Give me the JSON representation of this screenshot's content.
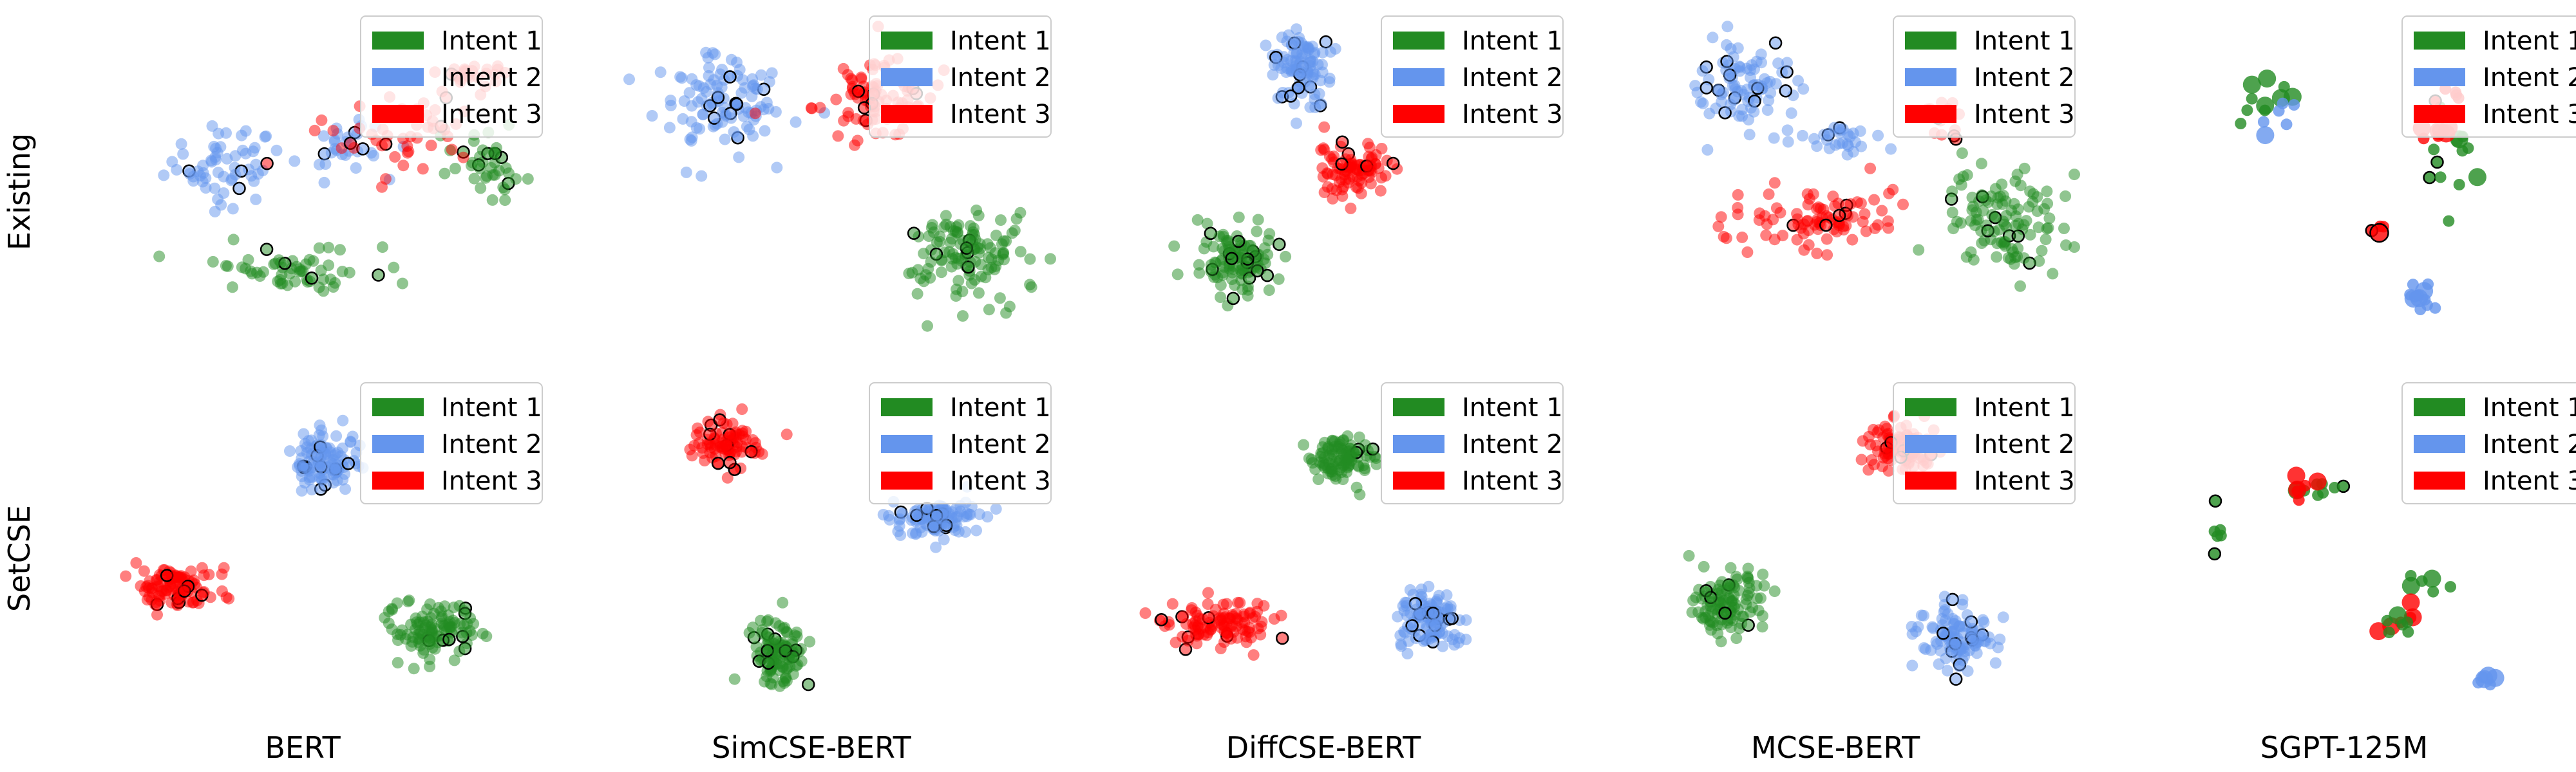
{
  "chart_data": {
    "type": "scatter",
    "description_free": true,
    "rows": [
      "Existing",
      "SetCSE"
    ],
    "columns": [
      "BERT",
      "SimCSE-BERT",
      "DiffCSE-BERT",
      "MCSE-BERT",
      "SGPT-125M"
    ],
    "legend": [
      {
        "name": "Intent 1",
        "color": "#228b22"
      },
      {
        "name": "Intent 2",
        "color": "#6495ed"
      },
      {
        "name": "Intent 3",
        "color": "#ff0000"
      }
    ],
    "legend_position": "top-right",
    "axes_visible": false,
    "grid": false,
    "panels": [
      {
        "row": "Existing",
        "column": "BERT",
        "clusters": [
          {
            "series": "Intent 2",
            "center": [
              -1.6,
              0.6
            ],
            "spread": [
              0.9,
              0.8
            ],
            "n": 60
          },
          {
            "series": "Intent 2",
            "center": [
              0.5,
              1.0
            ],
            "spread": [
              0.7,
              0.6
            ],
            "n": 30
          },
          {
            "series": "Intent 1",
            "center": [
              -0.4,
              -1.8
            ],
            "spread": [
              1.2,
              0.5
            ],
            "n": 60
          },
          {
            "series": "Intent 1",
            "center": [
              3.0,
              0.6
            ],
            "spread": [
              0.6,
              0.6
            ],
            "n": 40
          },
          {
            "series": "Intent 3",
            "center": [
              1.4,
              1.4
            ],
            "spread": [
              1.2,
              0.9
            ],
            "n": 50
          },
          {
            "series": "Intent 3",
            "center": [
              2.5,
              2.6
            ],
            "spread": [
              0.6,
              0.5
            ],
            "n": 25
          }
        ]
      },
      {
        "row": "Existing",
        "column": "SimCSE-BERT",
        "clusters": [
          {
            "series": "Intent 2",
            "center": [
              -1.8,
              2.0
            ],
            "spread": [
              1.0,
              1.0
            ],
            "n": 110
          },
          {
            "series": "Intent 3",
            "center": [
              0.8,
              2.2
            ],
            "spread": [
              0.9,
              0.9
            ],
            "n": 90
          },
          {
            "series": "Intent 1",
            "center": [
              2.4,
              -1.4
            ],
            "spread": [
              1.0,
              0.9
            ],
            "n": 120
          }
        ]
      },
      {
        "row": "Existing",
        "column": "DiffCSE-BERT",
        "clusters": [
          {
            "series": "Intent 2",
            "center": [
              -0.6,
              2.8
            ],
            "spread": [
              0.5,
              0.8
            ],
            "n": 100
          },
          {
            "series": "Intent 3",
            "center": [
              0.3,
              0.5
            ],
            "spread": [
              0.6,
              0.5
            ],
            "n": 90
          },
          {
            "series": "Intent 1",
            "center": [
              -1.7,
              -1.6
            ],
            "spread": [
              0.6,
              0.7
            ],
            "n": 110
          }
        ]
      },
      {
        "row": "Existing",
        "column": "MCSE-BERT",
        "clusters": [
          {
            "series": "Intent 2",
            "center": [
              -1.8,
              2.4
            ],
            "spread": [
              0.9,
              0.9
            ],
            "n": 90
          },
          {
            "series": "Intent 2",
            "center": [
              0.0,
              1.2
            ],
            "spread": [
              0.8,
              0.4
            ],
            "n": 30
          },
          {
            "series": "Intent 3",
            "center": [
              -0.5,
              -0.6
            ],
            "spread": [
              1.2,
              0.6
            ],
            "n": 90
          },
          {
            "series": "Intent 3",
            "center": [
              1.6,
              1.6
            ],
            "spread": [
              0.3,
              0.5
            ],
            "n": 15
          },
          {
            "series": "Intent 1",
            "center": [
              2.7,
              -0.7
            ],
            "spread": [
              0.9,
              1.0
            ],
            "n": 110
          }
        ]
      },
      {
        "row": "Existing",
        "column": "SGPT-125M",
        "clusters": [
          {
            "series": "Intent 2",
            "center": [
              1.0,
              -2.4
            ],
            "spread": [
              0.3,
              0.4
            ],
            "n": 12
          },
          {
            "series": "Intent 1",
            "center": [
              1.5,
              0.6
            ],
            "spread": [
              0.4,
              1.2
            ],
            "n": 14
          },
          {
            "series": "Intent 3",
            "center": [
              1.4,
              1.6
            ],
            "spread": [
              0.4,
              0.8
            ],
            "n": 14
          },
          {
            "series": "Intent 1",
            "center": [
              -1.6,
              2.0
            ],
            "spread": [
              0.8,
              0.5
            ],
            "n": 10
          },
          {
            "series": "Intent 2",
            "center": [
              -1.4,
              1.8
            ],
            "spread": [
              0.8,
              0.5
            ],
            "n": 6
          },
          {
            "series": "Intent 3",
            "center": [
              0.4,
              -0.8
            ],
            "spread": [
              0.4,
              0.3
            ],
            "n": 4
          }
        ]
      },
      {
        "row": "SetCSE",
        "column": "BERT",
        "clusters": [
          {
            "series": "Intent 2",
            "center": [
              0.2,
              2.2
            ],
            "spread": [
              0.5,
              0.6
            ],
            "n": 110
          },
          {
            "series": "Intent 3",
            "center": [
              -2.4,
              -0.7
            ],
            "spread": [
              0.6,
              0.5
            ],
            "n": 110
          },
          {
            "series": "Intent 1",
            "center": [
              2.0,
              -1.6
            ],
            "spread": [
              0.7,
              0.6
            ],
            "n": 110
          }
        ]
      },
      {
        "row": "SetCSE",
        "column": "SimCSE-BERT",
        "clusters": [
          {
            "series": "Intent 3",
            "center": [
              -1.7,
              2.6
            ],
            "spread": [
              0.5,
              0.5
            ],
            "n": 90
          },
          {
            "series": "Intent 2",
            "center": [
              2.0,
              0.9
            ],
            "spread": [
              0.7,
              0.4
            ],
            "n": 110
          },
          {
            "series": "Intent 1",
            "center": [
              -0.8,
              -2.2
            ],
            "spread": [
              0.4,
              0.6
            ],
            "n": 110
          }
        ]
      },
      {
        "row": "SetCSE",
        "column": "DiffCSE-BERT",
        "clusters": [
          {
            "series": "Intent 1",
            "center": [
              0.1,
              2.3
            ],
            "spread": [
              0.5,
              0.5
            ],
            "n": 100
          },
          {
            "series": "Intent 3",
            "center": [
              -2.0,
              -1.5
            ],
            "spread": [
              0.8,
              0.5
            ],
            "n": 110
          },
          {
            "series": "Intent 2",
            "center": [
              1.6,
              -1.4
            ],
            "spread": [
              0.5,
              0.6
            ],
            "n": 110
          }
        ]
      },
      {
        "row": "SetCSE",
        "column": "MCSE-BERT",
        "clusters": [
          {
            "series": "Intent 3",
            "center": [
              0.9,
              2.5
            ],
            "spread": [
              0.6,
              0.5
            ],
            "n": 100
          },
          {
            "series": "Intent 1",
            "center": [
              -2.1,
              -1.0
            ],
            "spread": [
              0.5,
              0.6
            ],
            "n": 110
          },
          {
            "series": "Intent 2",
            "center": [
              1.9,
              -1.8
            ],
            "spread": [
              0.6,
              0.6
            ],
            "n": 110
          }
        ]
      },
      {
        "row": "SetCSE",
        "column": "SGPT-125M",
        "clusters": [
          {
            "series": "Intent 1",
            "center": [
              -0.7,
              1.5
            ],
            "spread": [
              0.4,
              0.3
            ],
            "n": 8
          },
          {
            "series": "Intent 3",
            "center": [
              -0.9,
              1.6
            ],
            "spread": [
              0.4,
              0.3
            ],
            "n": 6
          },
          {
            "series": "Intent 1",
            "center": [
              -2.4,
              0.6
            ],
            "spread": [
              0.2,
              0.5
            ],
            "n": 6
          },
          {
            "series": "Intent 1",
            "center": [
              1.2,
              -0.6
            ],
            "spread": [
              0.6,
              0.5
            ],
            "n": 6
          },
          {
            "series": "Intent 3",
            "center": [
              0.7,
              -1.4
            ],
            "spread": [
              0.4,
              0.3
            ],
            "n": 6
          },
          {
            "series": "Intent 2",
            "center": [
              2.2,
              -2.8
            ],
            "spread": [
              0.2,
              0.2
            ],
            "n": 6
          },
          {
            "series": "Intent 1",
            "center": [
              0.6,
              -1.5
            ],
            "spread": [
              0.4,
              0.3
            ],
            "n": 6
          }
        ]
      }
    ]
  }
}
